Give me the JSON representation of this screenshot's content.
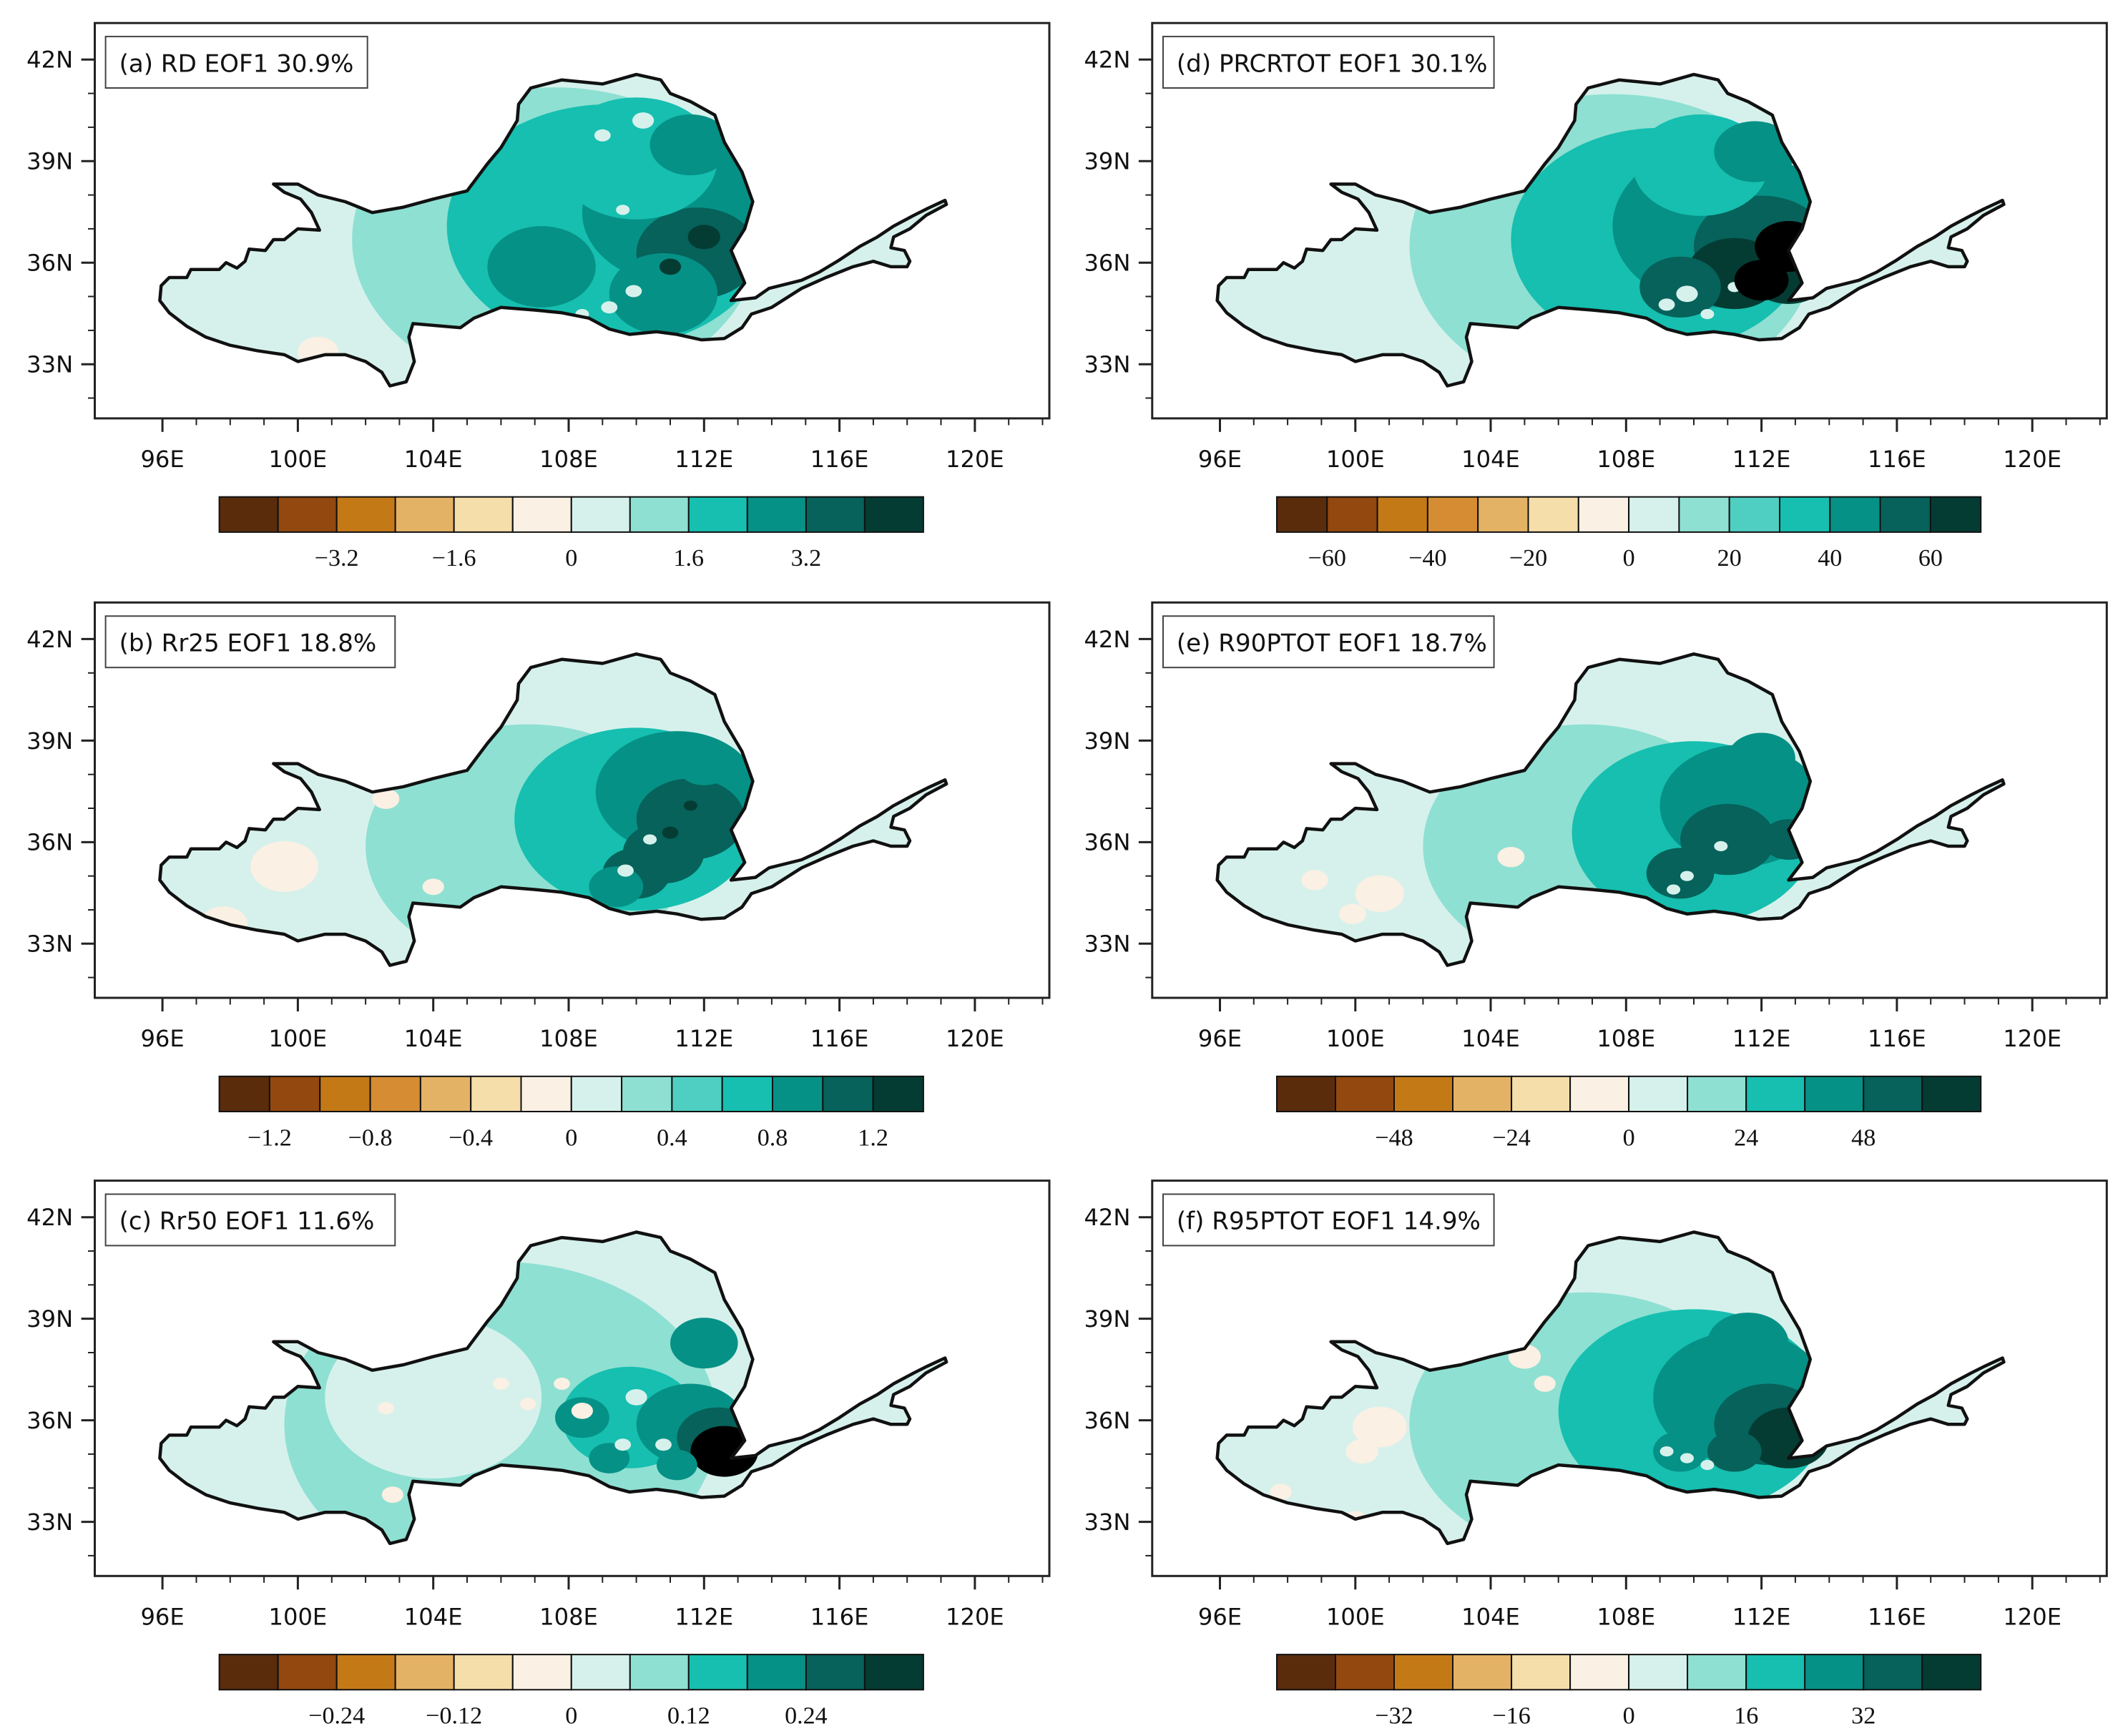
{
  "figure": {
    "x_ticks": [
      "96E",
      "100E",
      "104E",
      "108E",
      "112E",
      "116E",
      "120E"
    ],
    "y_ticks": [
      "42N",
      "39N",
      "36N",
      "33N"
    ],
    "palette_note": "diverging brown (negative) to teal (positive)"
  },
  "panels": [
    {
      "title": "(a) RD EOF1 30.9%",
      "pattern": "a",
      "colorbar": {
        "colors": [
          "#5a2c0c",
          "#93480f",
          "#c47917",
          "#e3b264",
          "#f5deaa",
          "#faf0e3",
          "#d6f1ec",
          "#8ee0d2",
          "#16bfb0",
          "#069186",
          "#06625a",
          "#043c33"
        ],
        "tick_labels": [
          "−3.2",
          "−1.6",
          "0",
          "1.6",
          "3.2"
        ],
        "tick_positions": [
          2,
          4,
          6,
          8,
          10
        ]
      }
    },
    {
      "title": "(d) PRCRTOT EOF1 30.1%",
      "pattern": "d",
      "colorbar": {
        "colors": [
          "#5a2c0c",
          "#93480f",
          "#c47917",
          "#d58c33",
          "#e3b264",
          "#f5deaa",
          "#faf0e3",
          "#d6f1ec",
          "#8ee0d2",
          "#4fcfc1",
          "#16bfb0",
          "#069186",
          "#06625a",
          "#043c33"
        ],
        "tick_labels": [
          "−60",
          "−40",
          "−20",
          "0",
          "20",
          "40",
          "60"
        ],
        "tick_positions": [
          1,
          3,
          5,
          7,
          9,
          11,
          13
        ]
      }
    },
    {
      "title": "(b) Rr25 EOF1 18.8%",
      "pattern": "b",
      "colorbar": {
        "colors": [
          "#5a2c0c",
          "#93480f",
          "#c47917",
          "#d58c33",
          "#e3b264",
          "#f5deaa",
          "#faf0e3",
          "#d6f1ec",
          "#8ee0d2",
          "#4fcfc1",
          "#16bfb0",
          "#069186",
          "#06625a",
          "#043c33"
        ],
        "tick_labels": [
          "−1.2",
          "−0.8",
          "−0.4",
          "0",
          "0.4",
          "0.8",
          "1.2"
        ],
        "tick_positions": [
          1,
          3,
          5,
          7,
          9,
          11,
          13
        ]
      }
    },
    {
      "title": "(e) R90PTOT EOF1 18.7%",
      "pattern": "e",
      "colorbar": {
        "colors": [
          "#5a2c0c",
          "#93480f",
          "#c47917",
          "#e3b264",
          "#f5deaa",
          "#faf0e3",
          "#d6f1ec",
          "#8ee0d2",
          "#16bfb0",
          "#069186",
          "#06625a",
          "#043c33"
        ],
        "tick_labels": [
          "−48",
          "−24",
          "0",
          "24",
          "48"
        ],
        "tick_positions": [
          2,
          4,
          6,
          8,
          10
        ]
      }
    },
    {
      "title": "(c) Rr50 EOF1 11.6%",
      "pattern": "c",
      "colorbar": {
        "colors": [
          "#5a2c0c",
          "#93480f",
          "#c47917",
          "#e3b264",
          "#f5deaa",
          "#faf0e3",
          "#d6f1ec",
          "#8ee0d2",
          "#16bfb0",
          "#069186",
          "#06625a",
          "#043c33"
        ],
        "tick_labels": [
          "−0.24",
          "−0.12",
          "0",
          "0.12",
          "0.24"
        ],
        "tick_positions": [
          2,
          4,
          6,
          8,
          10
        ]
      }
    },
    {
      "title": "(f) R95PTOT EOF1 14.9%",
      "pattern": "f",
      "colorbar": {
        "colors": [
          "#5a2c0c",
          "#93480f",
          "#c47917",
          "#e3b264",
          "#f5deaa",
          "#faf0e3",
          "#d6f1ec",
          "#8ee0d2",
          "#16bfb0",
          "#069186",
          "#06625a",
          "#043c33"
        ],
        "tick_labels": [
          "−32",
          "−16",
          "0",
          "16",
          "32"
        ],
        "tick_positions": [
          2,
          4,
          6,
          8,
          10
        ]
      }
    }
  ]
}
